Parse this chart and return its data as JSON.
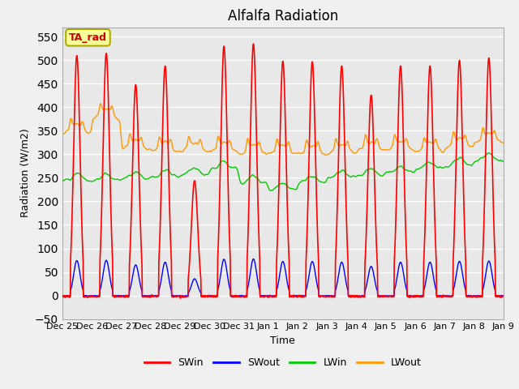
{
  "title": "Alfalfa Radiation",
  "xlabel": "Time",
  "ylabel": "Radiation (W/m2)",
  "ylim": [
    -50,
    570
  ],
  "yticks": [
    -50,
    0,
    50,
    100,
    150,
    200,
    250,
    300,
    350,
    400,
    450,
    500,
    550
  ],
  "annotation_text": "TA_rad",
  "annotation_color": "#cc0000",
  "annotation_bg": "#ffff99",
  "annotation_border": "#aaaa00",
  "colors": {
    "SWin": "#ff0000",
    "SWout": "#0000ff",
    "LWin": "#00cc00",
    "LWout": "#ff9900"
  },
  "fig_bg_color": "#f0f0f0",
  "plot_bg_color": "#e8e8e8",
  "grid_color": "#ffffff",
  "n_days": 15,
  "figsize": [
    6.4,
    4.8
  ],
  "dpi": 100,
  "title_fontsize": 12,
  "label_fontsize": 9,
  "tick_fontsize": 8,
  "swin_peaks": [
    510,
    515,
    448,
    488,
    244,
    530,
    535,
    498,
    497,
    488,
    426,
    488,
    488,
    500,
    505
  ],
  "lwin_base": [
    245,
    245,
    248,
    252,
    255,
    270,
    240,
    225,
    240,
    250,
    255,
    260,
    270,
    278,
    285
  ],
  "lwout_base": [
    345,
    375,
    310,
    305,
    305,
    305,
    300,
    300,
    300,
    302,
    308,
    308,
    305,
    315,
    325
  ],
  "day_names": [
    "Dec 25",
    "Dec 26",
    "Dec 27",
    "Dec 28",
    "Dec 29",
    "Dec 30",
    "Dec 31",
    "Jan 1",
    "Jan 2",
    "Jan 3",
    "Jan 4",
    "Jan 5",
    "Jan 6",
    "Jan 7",
    "Jan 8",
    "Jan 9"
  ]
}
